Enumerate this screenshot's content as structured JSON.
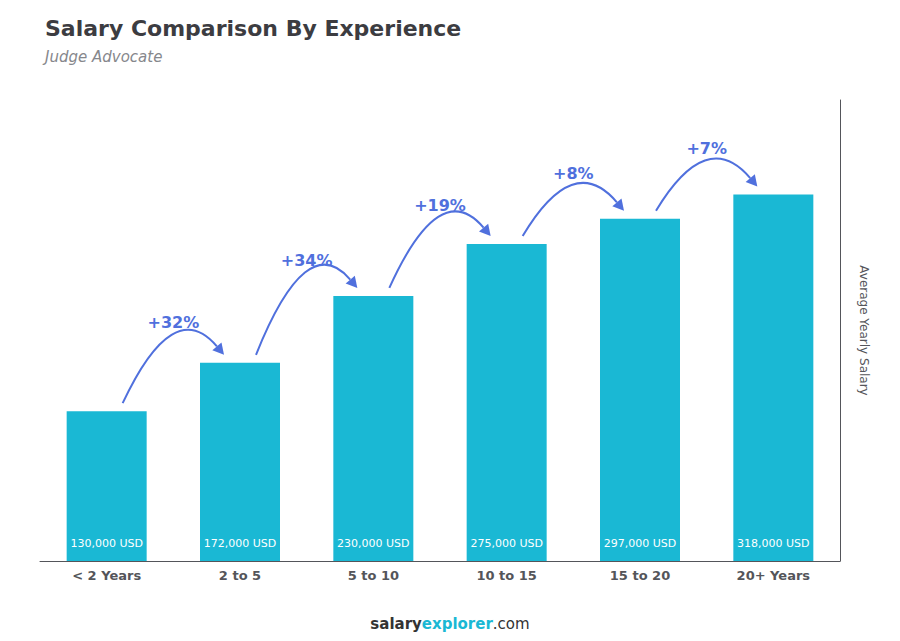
{
  "chart_data": {
    "type": "bar",
    "title": "Salary Comparison By Experience",
    "subtitle": "Judge Advocate",
    "ylabel": "Average Yearly Salary",
    "categories": [
      "< 2 Years",
      "2 to 5",
      "5 to 10",
      "10 to 15",
      "15 to 20",
      "20+ Years"
    ],
    "values": [
      130000,
      172000,
      230000,
      275000,
      297000,
      318000
    ],
    "value_labels": [
      "130,000 USD",
      "172,000 USD",
      "230,000 USD",
      "275,000 USD",
      "297,000 USD",
      "318,000 USD"
    ],
    "data_labels": true,
    "color": "#1ab8d4",
    "ylim": [
      0,
      400000
    ],
    "tick_labels": "x",
    "grid": false,
    "annotations": [
      {
        "text": "+32%",
        "from": "< 2 Years",
        "to": "2 to 5"
      },
      {
        "text": "+34%",
        "from": "2 to 5",
        "to": "5 to 10"
      },
      {
        "text": "+19%",
        "from": "5 to 10",
        "to": "10 to 15"
      },
      {
        "text": "+8%",
        "from": "10 to 15",
        "to": "15 to 20"
      },
      {
        "text": "+7%",
        "from": "15 to 20",
        "to": "20+ Years"
      }
    ],
    "footer": [
      "salary",
      "explorer",
      ".com"
    ]
  }
}
